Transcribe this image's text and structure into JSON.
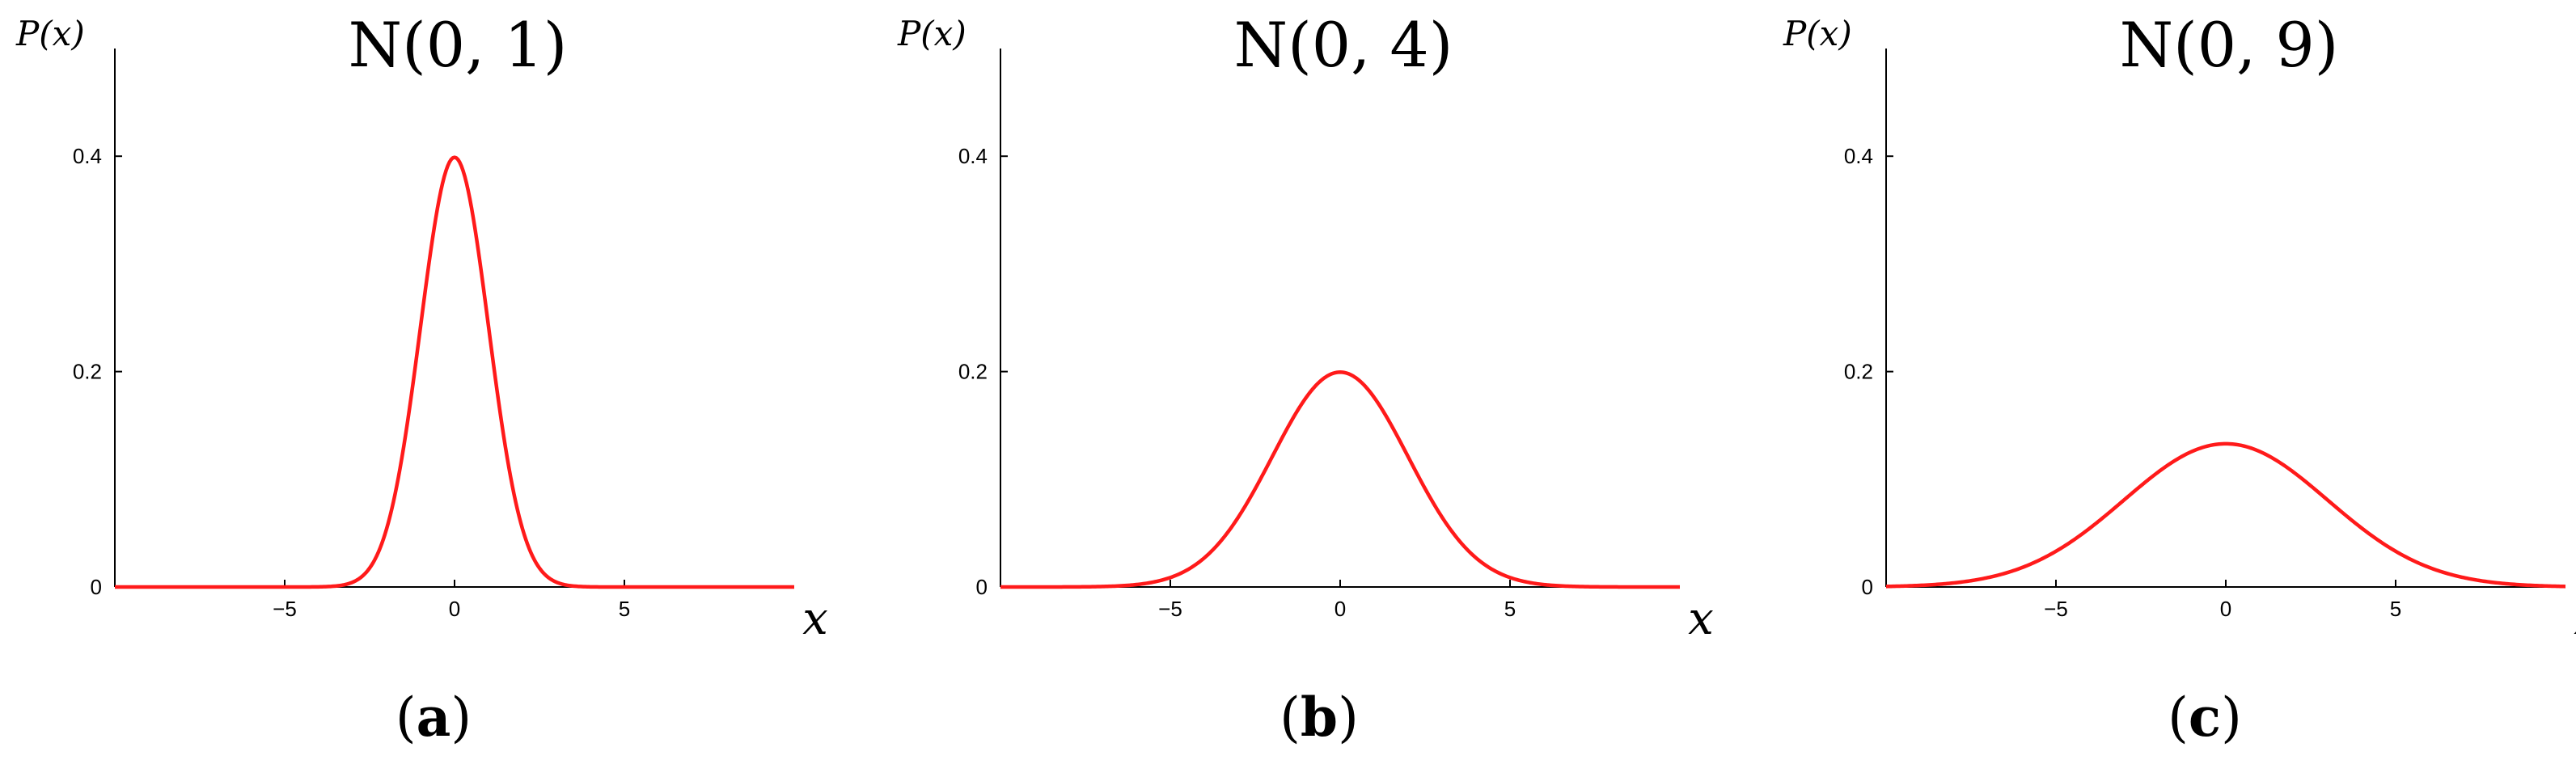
{
  "colors": {
    "curve": "#ff1a1a",
    "axis": "#000000"
  },
  "chart_data": [
    {
      "type": "line",
      "title": "N(0, 1)",
      "xlabel": "x",
      "ylabel": "P(x)",
      "caption": {
        "open": "(",
        "letter": "a",
        "close": ")"
      },
      "mean": 0,
      "variance": 1,
      "xlim": [
        -10,
        10
      ],
      "ylim": [
        0,
        0.5
      ],
      "xticks": [
        -5,
        0,
        5
      ],
      "xtick_labels": [
        "−5",
        "0",
        "5"
      ],
      "yticks": [
        0,
        0.2,
        0.4
      ],
      "ytick_labels": [
        "0",
        "0.2",
        "0.4"
      ],
      "series": [
        {
          "peak": 0.399,
          "x": [
            -10,
            -4,
            -3,
            -2,
            -1,
            0,
            1,
            2,
            3,
            4,
            10
          ],
          "y": [
            0,
            0.0001,
            0.0044,
            0.054,
            0.242,
            0.399,
            0.242,
            0.054,
            0.0044,
            0.0001,
            0
          ]
        }
      ],
      "grid": false
    },
    {
      "type": "line",
      "title": "N(0, 4)",
      "xlabel": "x",
      "ylabel": "P(x)",
      "caption": {
        "open": "(",
        "letter": "b",
        "close": ")"
      },
      "mean": 0,
      "variance": 4,
      "xlim": [
        -10,
        10
      ],
      "ylim": [
        0,
        0.5
      ],
      "xticks": [
        -5,
        0,
        5
      ],
      "xtick_labels": [
        "−5",
        "0",
        "5"
      ],
      "yticks": [
        0,
        0.2,
        0.4
      ],
      "ytick_labels": [
        "0",
        "0.2",
        "0.4"
      ],
      "series": [
        {
          "peak": 0.199,
          "x": [
            -10,
            -6,
            -4,
            -2,
            0,
            2,
            4,
            6,
            10
          ],
          "y": [
            0,
            0.0022,
            0.027,
            0.121,
            0.199,
            0.121,
            0.027,
            0.0022,
            0
          ]
        }
      ],
      "grid": false
    },
    {
      "type": "line",
      "title": "N(0, 9)",
      "xlabel": "x",
      "ylabel": "P(x)",
      "caption": {
        "open": "(",
        "letter": "c",
        "close": ")"
      },
      "mean": 0,
      "variance": 9,
      "xlim": [
        -10,
        10
      ],
      "ylim": [
        0,
        0.5
      ],
      "xticks": [
        -5,
        0,
        5
      ],
      "xtick_labels": [
        "−5",
        "0",
        "5"
      ],
      "yticks": [
        0,
        0.2,
        0.4
      ],
      "ytick_labels": [
        "0",
        "0.2",
        "0.4"
      ],
      "series": [
        {
          "peak": 0.133,
          "x": [
            -10,
            -6,
            -3,
            0,
            3,
            6,
            10
          ],
          "y": [
            0.0006,
            0.018,
            0.081,
            0.133,
            0.081,
            0.018,
            0.0006
          ]
        }
      ],
      "grid": false
    }
  ]
}
